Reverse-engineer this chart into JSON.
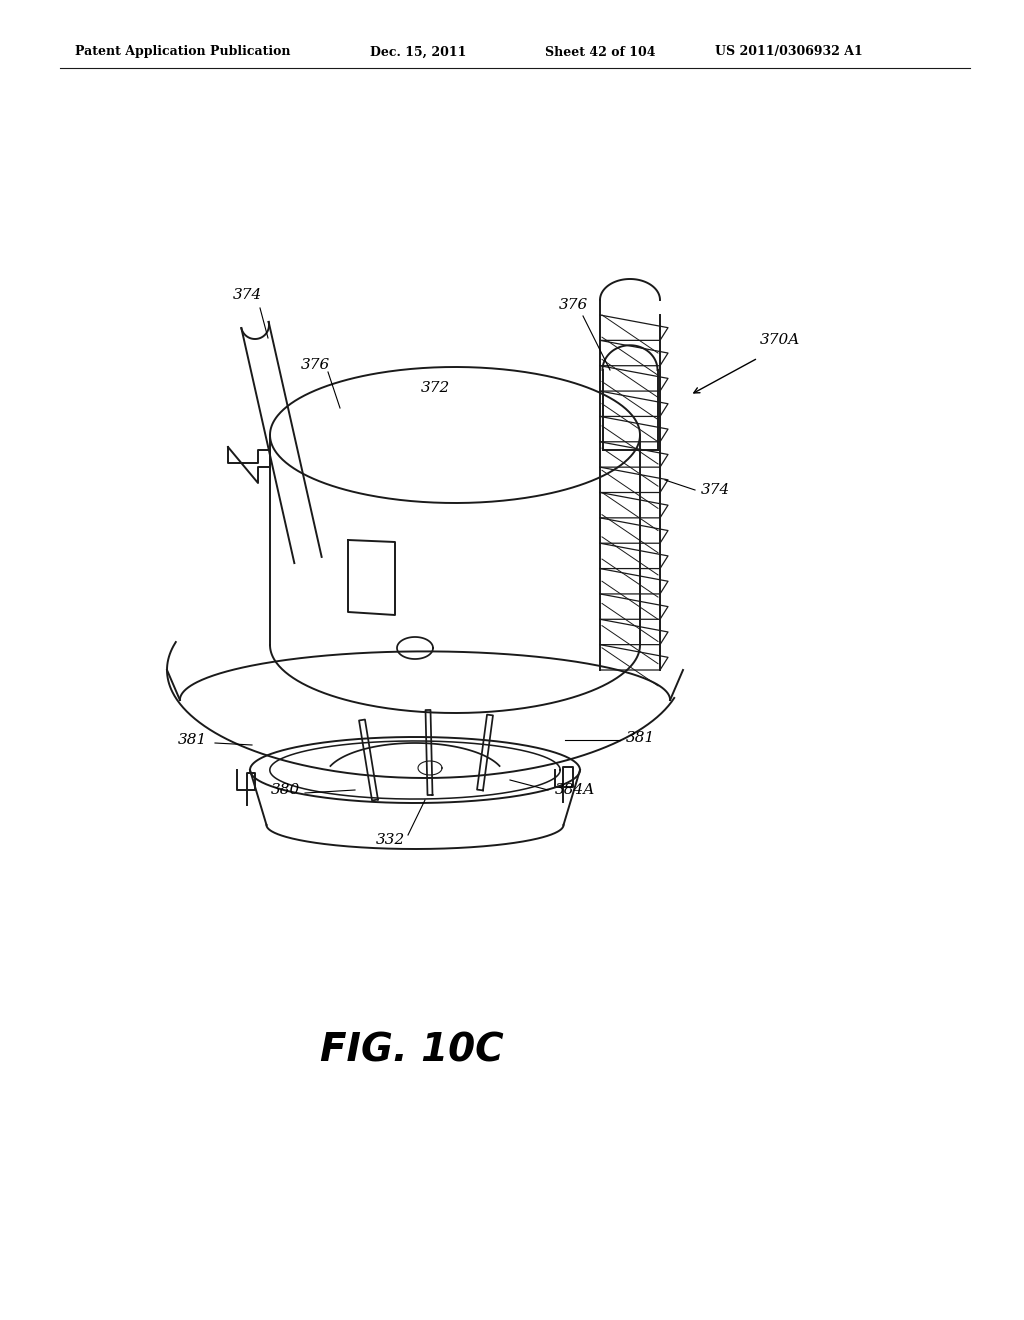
{
  "bg_color": "#ffffff",
  "header_left": "Patent Application Publication",
  "header_mid1": "Dec. 15, 2011",
  "header_mid2": "Sheet 42 of 104",
  "header_right": "US 2011/0306932 A1",
  "figure_label": "FIG. 10C",
  "line_color": "#1a1a1a",
  "lw": 1.4,
  "figsize": [
    10.24,
    13.2
  ],
  "dpi": 100
}
